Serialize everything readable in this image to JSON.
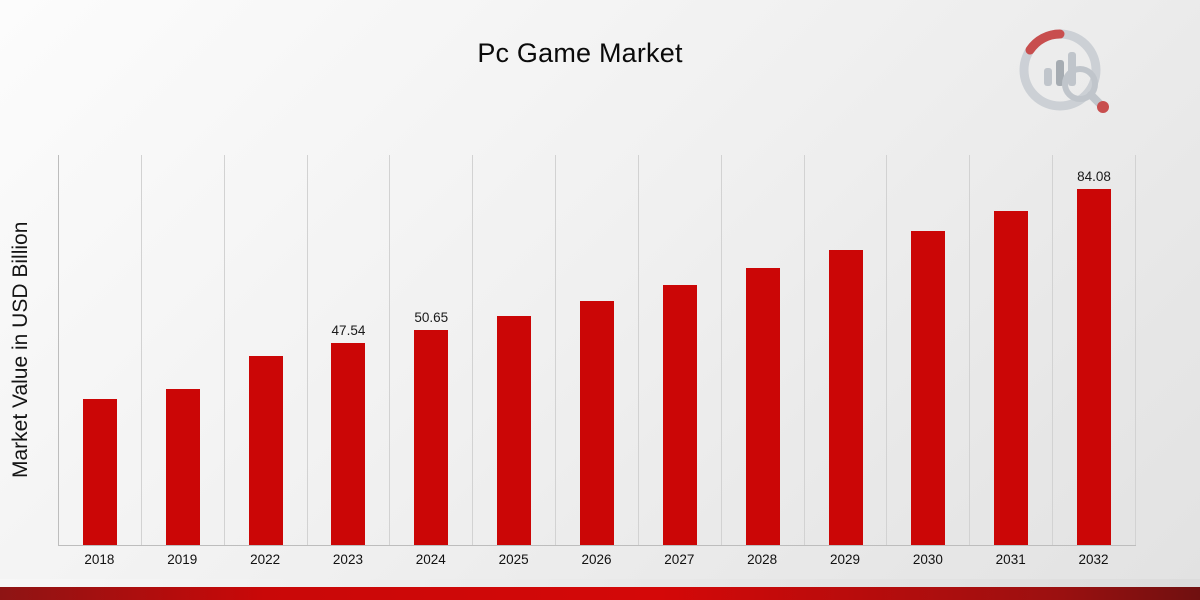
{
  "page": {
    "title": "Pc Game Market"
  },
  "chart_data": {
    "type": "bar",
    "title": "Pc Game Market",
    "xlabel": "",
    "ylabel": "Market Value in USD Billion",
    "ylim": [
      0,
      92
    ],
    "grid": "vertical-only",
    "legend": "none",
    "bar_color": "#CB0606",
    "categories": [
      "2018",
      "2019",
      "2022",
      "2023",
      "2024",
      "2025",
      "2026",
      "2027",
      "2028",
      "2029",
      "2030",
      "2031",
      "2032"
    ],
    "values": [
      34.4,
      36.8,
      44.6,
      47.54,
      50.65,
      53.96,
      57.49,
      61.25,
      65.25,
      69.52,
      74.06,
      78.91,
      84.08
    ],
    "points": [
      {
        "year": "2018",
        "value": 34.4,
        "label": ""
      },
      {
        "year": "2019",
        "value": 36.8,
        "label": ""
      },
      {
        "year": "2022",
        "value": 44.6,
        "label": ""
      },
      {
        "year": "2023",
        "value": 47.54,
        "label": "47.54"
      },
      {
        "year": "2024",
        "value": 50.65,
        "label": "50.65"
      },
      {
        "year": "2025",
        "value": 53.96,
        "label": ""
      },
      {
        "year": "2026",
        "value": 57.49,
        "label": ""
      },
      {
        "year": "2027",
        "value": 61.25,
        "label": ""
      },
      {
        "year": "2028",
        "value": 65.25,
        "label": ""
      },
      {
        "year": "2029",
        "value": 69.52,
        "label": ""
      },
      {
        "year": "2030",
        "value": 74.06,
        "label": ""
      },
      {
        "year": "2031",
        "value": 78.91,
        "label": ""
      },
      {
        "year": "2032",
        "value": 84.08,
        "label": "84.08"
      }
    ],
    "annotated_values_shown": [
      "47.54",
      "50.65",
      "84.08"
    ]
  },
  "branding": {
    "logo_name": "market-research-logo",
    "accent_color": "#CB0606",
    "banner_color": "#C90808"
  }
}
